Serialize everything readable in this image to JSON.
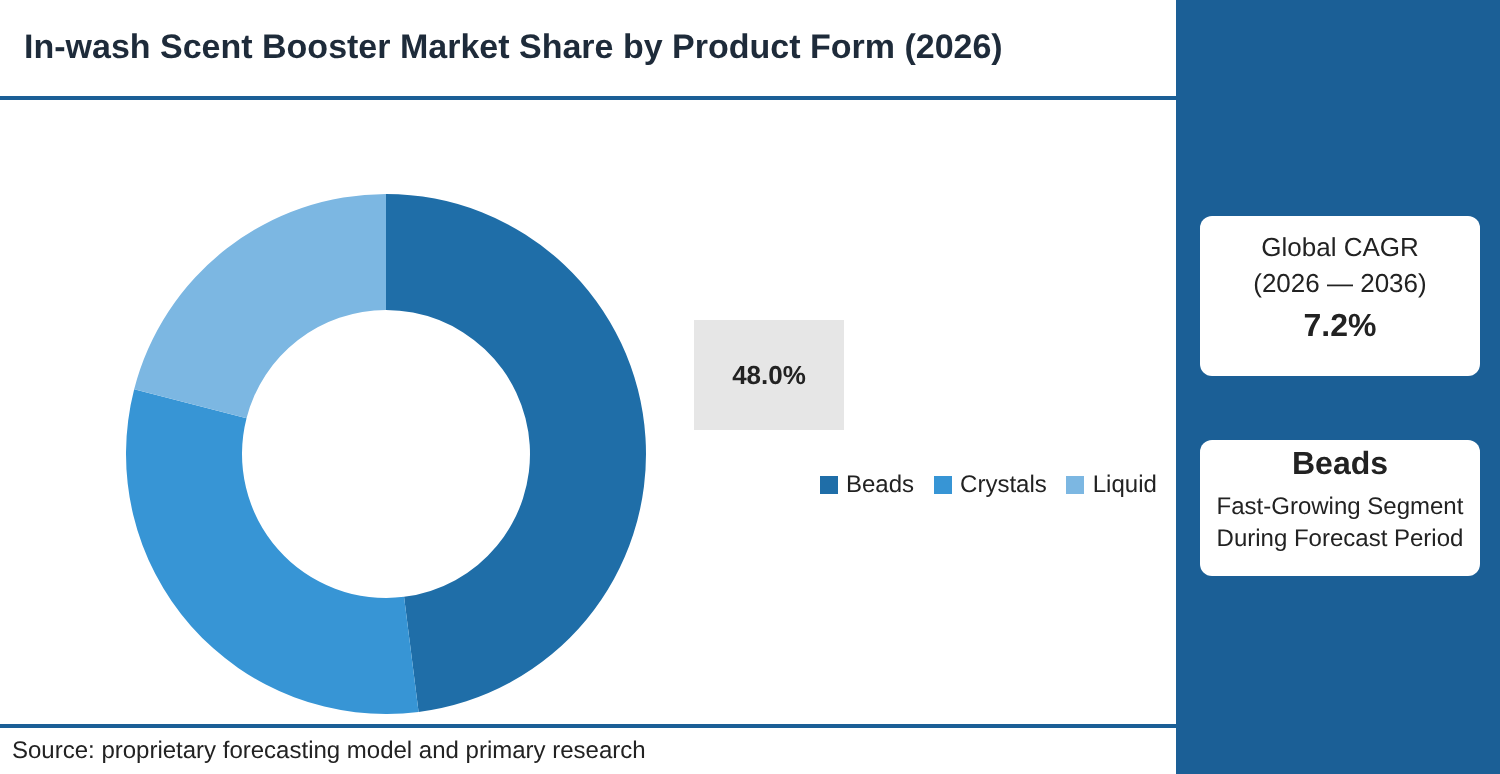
{
  "chart_data": {
    "type": "donut",
    "title": "In-wash Scent Booster Market Share by Product Form (2026)",
    "categories": [
      "Beads",
      "Crystals",
      "Liquid"
    ],
    "values": [
      48.0,
      31,
      21
    ],
    "colors": [
      "#1f6ea8",
      "#3795d5",
      "#7cb7e2"
    ],
    "value_labels": [
      "48.0%",
      null,
      null
    ],
    "legend": "right",
    "annotations": [
      "Global CAGR",
      "(2026 — 2036)",
      "7.2%",
      "Beads",
      "Fast-Growing Segment During Forecast Period",
      "Source: proprietary forecasting model and primary research"
    ]
  }
}
